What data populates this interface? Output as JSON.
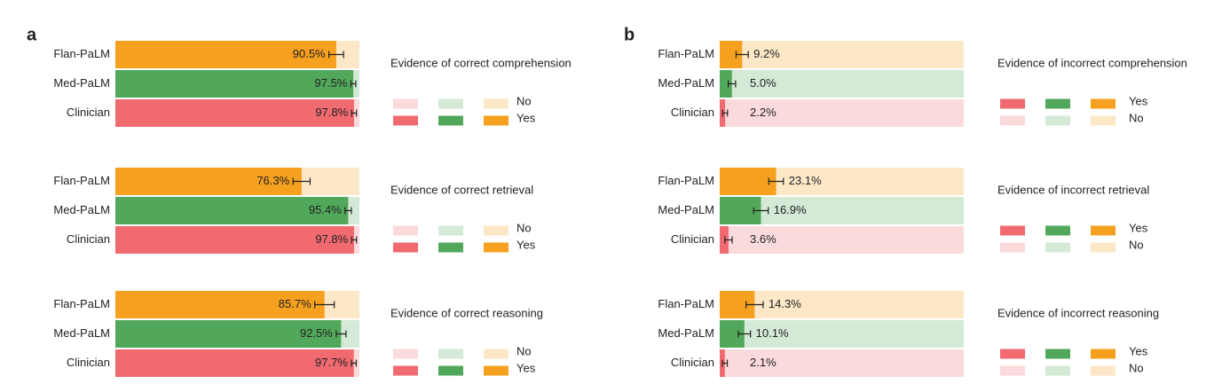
{
  "panel_labels": [
    "a",
    "b"
  ],
  "chart_data": [
    {
      "type": "hbar",
      "title": "Evidence of correct comprehension",
      "categories": [
        "Flan-PaLM",
        "Med-PaLM",
        "Clinician"
      ],
      "values": [
        90.5,
        97.5,
        97.8
      ],
      "value_labels": [
        "90.5%",
        "97.5%",
        "97.8%"
      ],
      "errors": [
        3,
        1,
        1
      ],
      "colors": [
        "#f5a01e",
        "#52a85a",
        "#f06a70"
      ],
      "legend": [
        "No",
        "Yes"
      ],
      "xlim": [
        0,
        100
      ]
    },
    {
      "type": "hbar",
      "title": "Evidence of correct retrieval",
      "categories": [
        "Flan-PaLM",
        "Med-PaLM",
        "Clinician"
      ],
      "values": [
        76.3,
        95.4,
        97.8
      ],
      "value_labels": [
        "76.3%",
        "95.4%",
        "97.8%"
      ],
      "errors": [
        3.5,
        1.3,
        1
      ],
      "colors": [
        "#f5a01e",
        "#52a85a",
        "#f06a70"
      ],
      "legend": [
        "No",
        "Yes"
      ],
      "xlim": [
        0,
        100
      ]
    },
    {
      "type": "hbar",
      "title": "Evidence of correct reasoning",
      "categories": [
        "Flan-PaLM",
        "Med-PaLM",
        "Clinician"
      ],
      "values": [
        85.7,
        92.5,
        97.7
      ],
      "value_labels": [
        "85.7%",
        "92.5%",
        "97.7%"
      ],
      "errors": [
        4,
        2,
        1
      ],
      "colors": [
        "#f5a01e",
        "#52a85a",
        "#f06a70"
      ],
      "legend": [
        "No",
        "Yes"
      ],
      "xlim": [
        0,
        100
      ]
    },
    {
      "type": "hbar",
      "title": "Evidence of incorrect comprehension",
      "categories": [
        "Flan-PaLM",
        "Med-PaLM",
        "Clinician"
      ],
      "values": [
        9.2,
        5.0,
        2.2
      ],
      "value_labels": [
        "9.2%",
        "5.0%",
        "2.2%"
      ],
      "errors": [
        2.5,
        1.5,
        1
      ],
      "colors": [
        "#f5a01e",
        "#52a85a",
        "#f06a70"
      ],
      "legend": [
        "Yes",
        "No"
      ],
      "xlim": [
        0,
        100
      ]
    },
    {
      "type": "hbar",
      "title": "Evidence of incorrect retrieval",
      "categories": [
        "Flan-PaLM",
        "Med-PaLM",
        "Clinician"
      ],
      "values": [
        23.1,
        16.9,
        3.6
      ],
      "value_labels": [
        "23.1%",
        "16.9%",
        "3.6%"
      ],
      "errors": [
        3,
        3,
        1.5
      ],
      "colors": [
        "#f5a01e",
        "#52a85a",
        "#f06a70"
      ],
      "legend": [
        "Yes",
        "No"
      ],
      "xlim": [
        0,
        100
      ]
    },
    {
      "type": "hbar",
      "title": "Evidence of incorrect reasoning",
      "categories": [
        "Flan-PaLM",
        "Med-PaLM",
        "Clinician"
      ],
      "values": [
        14.3,
        10.1,
        2.1
      ],
      "value_labels": [
        "14.3%",
        "10.1%",
        "2.1%"
      ],
      "errors": [
        3.5,
        2.5,
        1
      ],
      "colors": [
        "#f5a01e",
        "#52a85a",
        "#f06a70"
      ],
      "legend": [
        "Yes",
        "No"
      ],
      "xlim": [
        0,
        100
      ]
    }
  ]
}
